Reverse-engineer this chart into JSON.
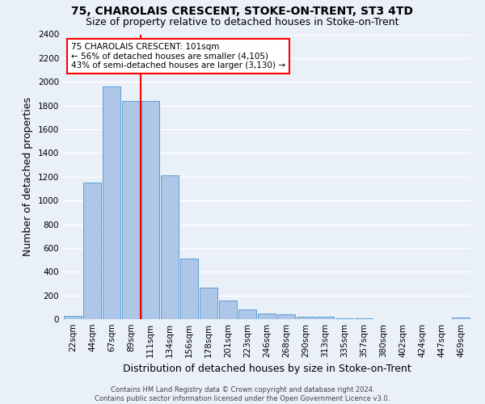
{
  "title": "75, CHAROLAIS CRESCENT, STOKE-ON-TRENT, ST3 4TD",
  "subtitle": "Size of property relative to detached houses in Stoke-on-Trent",
  "xlabel": "Distribution of detached houses by size in Stoke-on-Trent",
  "ylabel": "Number of detached properties",
  "footer_line1": "Contains HM Land Registry data © Crown copyright and database right 2024.",
  "footer_line2": "Contains public sector information licensed under the Open Government Licence v3.0.",
  "bar_labels": [
    "22sqm",
    "44sqm",
    "67sqm",
    "89sqm",
    "111sqm",
    "134sqm",
    "156sqm",
    "178sqm",
    "201sqm",
    "223sqm",
    "246sqm",
    "268sqm",
    "290sqm",
    "313sqm",
    "335sqm",
    "357sqm",
    "380sqm",
    "402sqm",
    "424sqm",
    "447sqm",
    "469sqm"
  ],
  "bar_values": [
    28,
    1150,
    1960,
    1840,
    1840,
    1210,
    510,
    265,
    155,
    80,
    45,
    40,
    22,
    18,
    10,
    8,
    3,
    3,
    2,
    2,
    15
  ],
  "bar_color": "#aec6e8",
  "bar_edgecolor": "#5a9fd4",
  "vline_color": "red",
  "vline_bin_index": 3,
  "annotation_text": "75 CHAROLAIS CRESCENT: 101sqm\n← 56% of detached houses are smaller (4,105)\n43% of semi-detached houses are larger (3,130) →",
  "annotation_boxcolor": "white",
  "annotation_edgecolor": "red",
  "ylim": [
    0,
    2400
  ],
  "yticks": [
    0,
    200,
    400,
    600,
    800,
    1000,
    1200,
    1400,
    1600,
    1800,
    2000,
    2200,
    2400
  ],
  "background_color": "#eaf0f8",
  "plot_bg_color": "#eaf0f8",
  "grid_color": "white",
  "title_fontsize": 10,
  "subtitle_fontsize": 9,
  "xlabel_fontsize": 9,
  "ylabel_fontsize": 9,
  "tick_fontsize": 7.5,
  "footer_fontsize": 6
}
